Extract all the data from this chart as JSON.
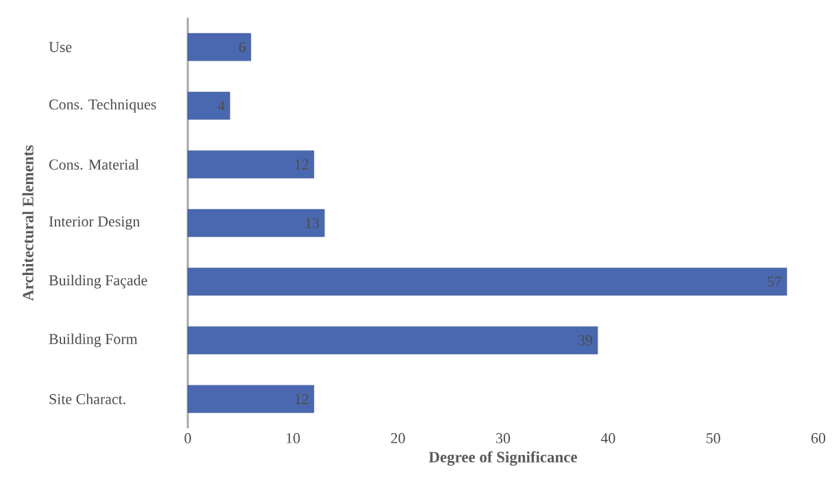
{
  "chart_data": {
    "type": "bar",
    "orientation": "horizontal",
    "xlabel": "Degree of Significance",
    "ylabel": "Architectural Elements",
    "categories": [
      "Use",
      "Cons. Techniques",
      "Cons. Material",
      "Interior Design",
      "Building Façade",
      "Building Form",
      "Site Charact."
    ],
    "values": [
      6,
      4,
      12,
      13,
      57,
      39,
      12
    ],
    "color": "#4a68b0",
    "xlim": [
      0,
      60
    ],
    "xticks": [
      0,
      10,
      20,
      30,
      40,
      50,
      60
    ],
    "grid": false,
    "data_labels": true
  }
}
